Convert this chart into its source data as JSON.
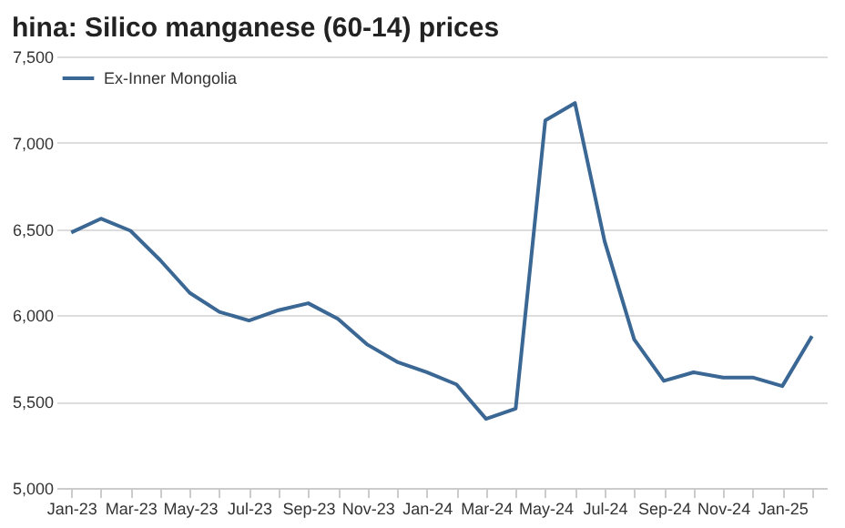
{
  "chart_data": {
    "type": "line",
    "title": "hina: Silico manganese (60-14) prices",
    "categories": [
      "Jan-23",
      null,
      "Mar-23",
      null,
      "May-23",
      null,
      "Jul-23",
      null,
      "Sep-23",
      null,
      "Nov-23",
      null,
      "Jan-24",
      null,
      "Mar-24",
      null,
      "May-24",
      null,
      "Jul-24",
      null,
      "Sep-24",
      null,
      "Nov-24",
      null,
      "Jan-25",
      null
    ],
    "series": [
      {
        "name": "Ex-Inner Mongolia",
        "color": "#3a6794",
        "values": [
          6480,
          6560,
          6490,
          6320,
          6130,
          6020,
          5970,
          6030,
          6070,
          5980,
          5830,
          5730,
          5670,
          5600,
          5400,
          5460,
          7130,
          7230,
          6430,
          5860,
          5620,
          5670,
          5640,
          5640,
          5590,
          5880
        ]
      }
    ],
    "ylim": [
      5000,
      7500
    ],
    "yticks": [
      {
        "value": 5000,
        "label": "5,000"
      },
      {
        "value": 5500,
        "label": "5,500"
      },
      {
        "value": 6000,
        "label": "6,000"
      },
      {
        "value": 6500,
        "label": "6,500"
      },
      {
        "value": 7000,
        "label": "7,000"
      },
      {
        "value": 7500,
        "label": "7,500"
      }
    ],
    "grid": "y",
    "legend": "top left",
    "marker": "none",
    "line_style": "solid"
  }
}
